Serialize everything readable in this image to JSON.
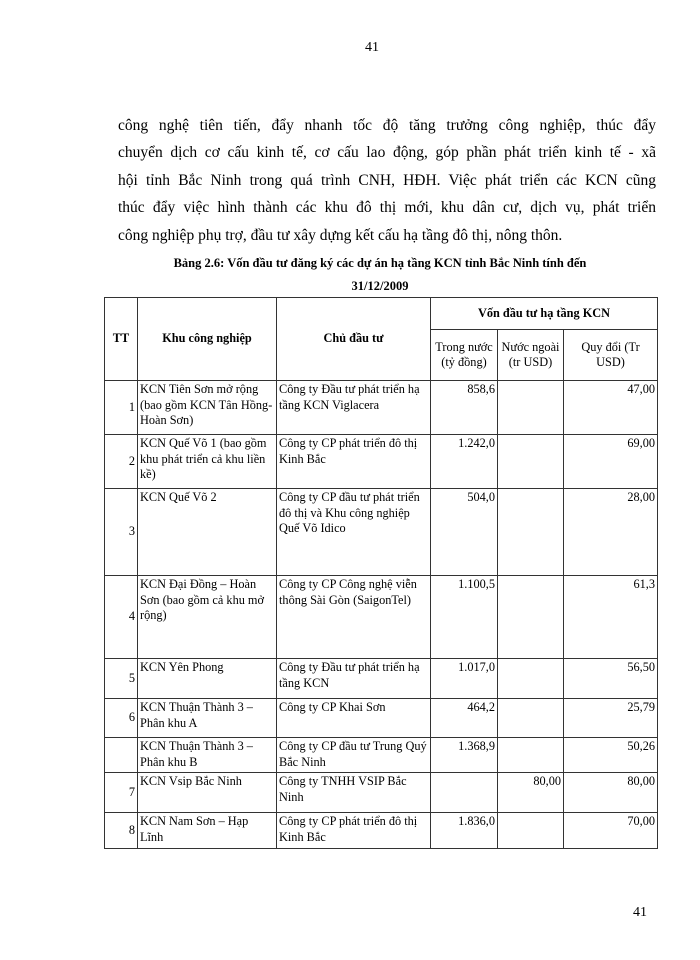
{
  "page_number_top": "41",
  "page_number_bottom": "41",
  "paragraph_lines": [
    "công nghệ tiên tiến, đẩy nhanh tốc độ tăng trưởng công nghiệp, thúc đẩy",
    "chuyển dịch cơ cấu kinh tế, cơ cấu lao động, góp phần phát triển kinh tế - xã",
    "hội tỉnh Bắc Ninh trong quá trình CNH, HĐH. Việc phát triển các KCN cũng",
    "thúc đẩy việc hình thành các khu đô thị mới, khu dân cư, dịch vụ, phát triển",
    "công nghiệp phụ trợ, đầu tư xây dựng kết cấu hạ tầng đô thị, nông thôn."
  ],
  "caption": {
    "line1": "Bảng 2.6: Vốn đầu tư đăng ký các dự án hạ tầng KCN tỉnh Bắc Ninh tính đến",
    "line2": "31/12/2009"
  },
  "table": {
    "headers": {
      "tt": "TT",
      "zone": "Khu công nghiệp",
      "investor": "Chủ đầu tư",
      "capital_group": "Vốn đầu tư hạ tầng KCN",
      "domestic": "Trong nước (tỷ đồng)",
      "foreign": "Nước ngoài (tr USD)",
      "converted": "Quy đổi (Tr USD)"
    },
    "rows": [
      {
        "tt": "1",
        "zone": "KCN Tiên Sơn mở rộng (bao gồm KCN Tân Hồng-Hoàn Sơn)",
        "investor": "Công ty Đầu tư phát triển hạ tầng KCN Viglacera",
        "domestic": "858,6",
        "foreign": "",
        "converted": "47,00"
      },
      {
        "tt": "2",
        "zone": "KCN Quế Võ 1 (bao gồm khu phát triển cả khu liền kề)",
        "investor": "Công ty CP phát triển đô thị Kinh Bắc",
        "domestic": "1.242,0",
        "foreign": "",
        "converted": "69,00"
      },
      {
        "tt": "3",
        "zone": "KCN Quế Võ 2",
        "investor": "Công ty CP đầu tư phát triển đô thị và Khu công nghiệp Quế Võ Idico",
        "domestic": "504,0",
        "foreign": "",
        "converted": "28,00"
      },
      {
        "tt": "4",
        "zone": "KCN Đại Đồng – Hoàn Sơn (bao gồm cả khu mở rộng)",
        "investor": "Công ty CP Công nghệ viễn thông Sài Gòn (SaigonTel)",
        "domestic": "1.100,5",
        "foreign": "",
        "converted": "61,3"
      },
      {
        "tt": "5",
        "zone": "KCN Yên Phong",
        "investor": "Công ty Đầu tư phát triển hạ tầng KCN",
        "domestic": "1.017,0",
        "foreign": "",
        "converted": "56,50"
      },
      {
        "tt": "6",
        "zone": "KCN Thuận Thành 3 – Phân khu A",
        "investor": "Công ty CP Khai Sơn",
        "domestic": "464,2",
        "foreign": "",
        "converted": "25,79"
      },
      {
        "tt": "",
        "zone": "KCN Thuận Thành 3 – Phân khu B",
        "investor": "Công ty CP đầu tư Trung Quý Bắc Ninh",
        "domestic": "1.368,9",
        "foreign": "",
        "converted": "50,26"
      },
      {
        "tt": "7",
        "zone": "KCN Vsip Bắc Ninh",
        "investor": "Công ty TNHH VSIP Bắc Ninh",
        "domestic": "",
        "foreign": "80,00",
        "converted": "80,00"
      },
      {
        "tt": "8",
        "zone": "KCN Nam Sơn – Hạp Lĩnh",
        "investor": "Công ty CP phát triển đô thị Kinh Bắc",
        "domestic": "1.836,0",
        "foreign": "",
        "converted": "70,00"
      }
    ]
  }
}
